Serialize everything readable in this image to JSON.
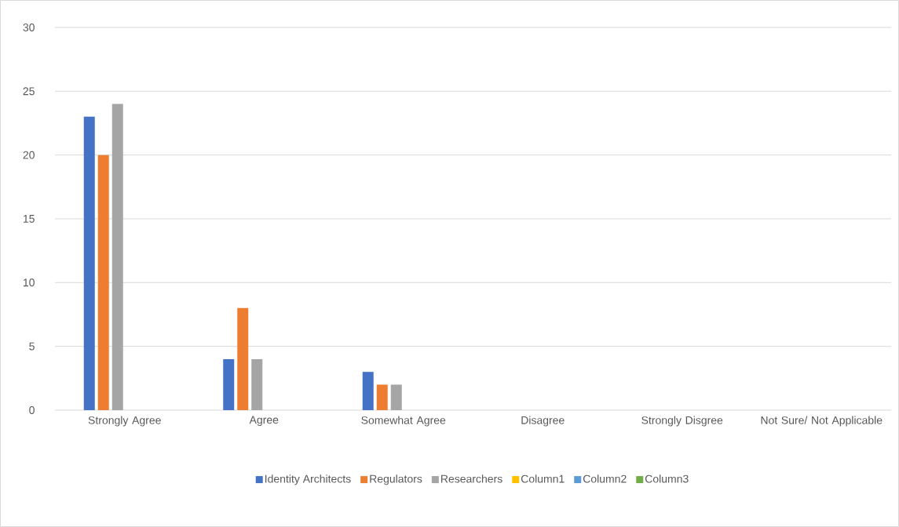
{
  "chart_data": {
    "type": "bar",
    "categories": [
      "Strongly Agree",
      "Agree",
      "Somewhat Agree",
      "Disagree",
      "Strongly Disgree",
      "Not Sure/ Not Applicable"
    ],
    "series": [
      {
        "name": "Identity Architects",
        "color": "#4472c4",
        "values": [
          23,
          4,
          3,
          null,
          null,
          null
        ]
      },
      {
        "name": "Regulators",
        "color": "#ed7d31",
        "values": [
          20,
          8,
          2,
          null,
          null,
          null
        ]
      },
      {
        "name": "Researchers",
        "color": "#a5a5a5",
        "values": [
          24,
          4,
          2,
          null,
          null,
          null
        ]
      },
      {
        "name": "Column1",
        "color": "#ffc000",
        "values": [
          null,
          null,
          null,
          null,
          null,
          null
        ]
      },
      {
        "name": "Column2",
        "color": "#5b9bd5",
        "values": [
          null,
          null,
          null,
          null,
          null,
          null
        ]
      },
      {
        "name": "Column3",
        "color": "#70ad47",
        "values": [
          null,
          null,
          null,
          null,
          null,
          null
        ]
      }
    ],
    "ylim": [
      0,
      30
    ],
    "yticks": [
      0,
      5,
      10,
      15,
      20,
      25,
      30
    ],
    "grid": "y",
    "legend": "bottom"
  }
}
